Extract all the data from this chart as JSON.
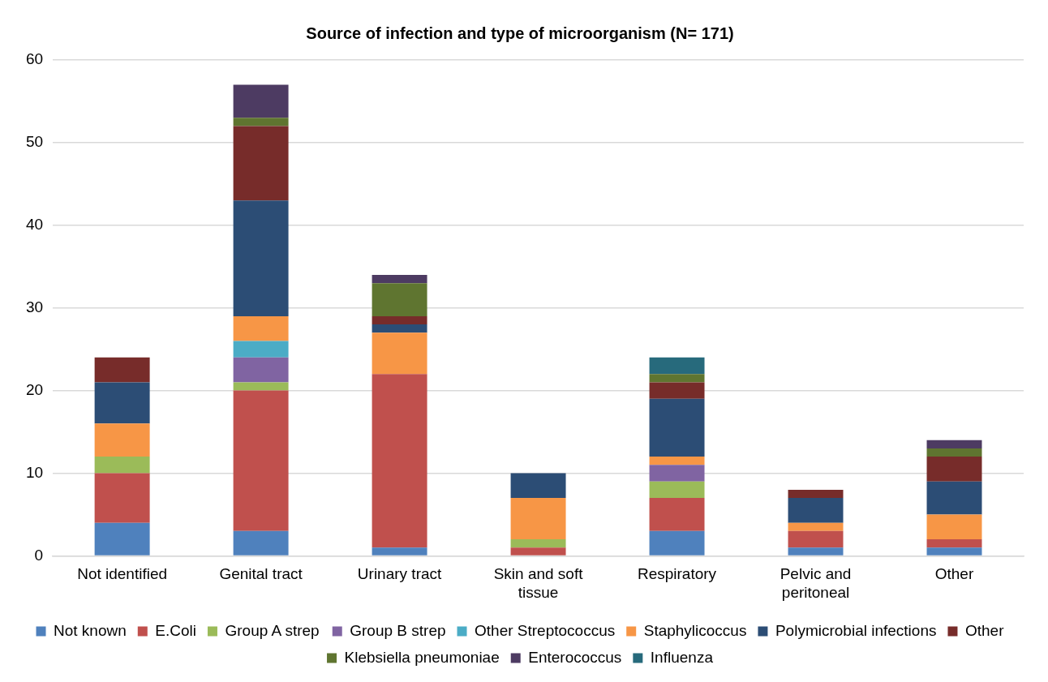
{
  "chart_data": {
    "type": "bar",
    "title": "Source of infection and type of microorganism (N= 171)",
    "stacked": true,
    "grid": "y",
    "legend": "bottom",
    "categories": [
      "Not identified",
      "Genital tract",
      "Urinary tract",
      "Skin and soft tissue",
      "Respiratory",
      "Pelvic and peritoneal",
      "Other"
    ],
    "ylim": [
      0,
      60
    ],
    "yticks": [
      0,
      10,
      20,
      30,
      40,
      50,
      60
    ],
    "series": [
      {
        "name": "Not known",
        "color": "#4f81bd",
        "values": [
          4,
          3,
          1,
          0,
          3,
          1,
          1
        ]
      },
      {
        "name": "E.Coli",
        "color": "#c0504d",
        "values": [
          6,
          17,
          21,
          1,
          4,
          2,
          1
        ]
      },
      {
        "name": "Group A strep",
        "color": "#9bbb59",
        "values": [
          2,
          1,
          0,
          1,
          2,
          0,
          0
        ]
      },
      {
        "name": "Group B strep",
        "color": "#8064a2",
        "values": [
          0,
          3,
          0,
          0,
          2,
          0,
          0
        ]
      },
      {
        "name": "Other Streptococcus",
        "color": "#4bacc6",
        "values": [
          0,
          2,
          0,
          0,
          0,
          0,
          0
        ]
      },
      {
        "name": "Staphylicoccus",
        "color": "#f79646",
        "values": [
          4,
          3,
          5,
          5,
          1,
          1,
          3
        ]
      },
      {
        "name": "Polymicrobial infections",
        "color": "#2c4d75",
        "values": [
          5,
          14,
          1,
          3,
          7,
          3,
          4
        ]
      },
      {
        "name": "Other",
        "color": "#772c2a",
        "values": [
          3,
          9,
          1,
          0,
          2,
          1,
          3
        ]
      },
      {
        "name": "Klebsiella pneumoniae",
        "color": "#5f7530",
        "values": [
          0,
          1,
          4,
          0,
          1,
          0,
          1
        ]
      },
      {
        "name": "Enterococcus",
        "color": "#4d3b62",
        "values": [
          0,
          4,
          1,
          0,
          0,
          0,
          1
        ]
      },
      {
        "name": "Influenza",
        "color": "#276a7c",
        "values": [
          0,
          0,
          0,
          0,
          2,
          0,
          0
        ]
      }
    ]
  }
}
